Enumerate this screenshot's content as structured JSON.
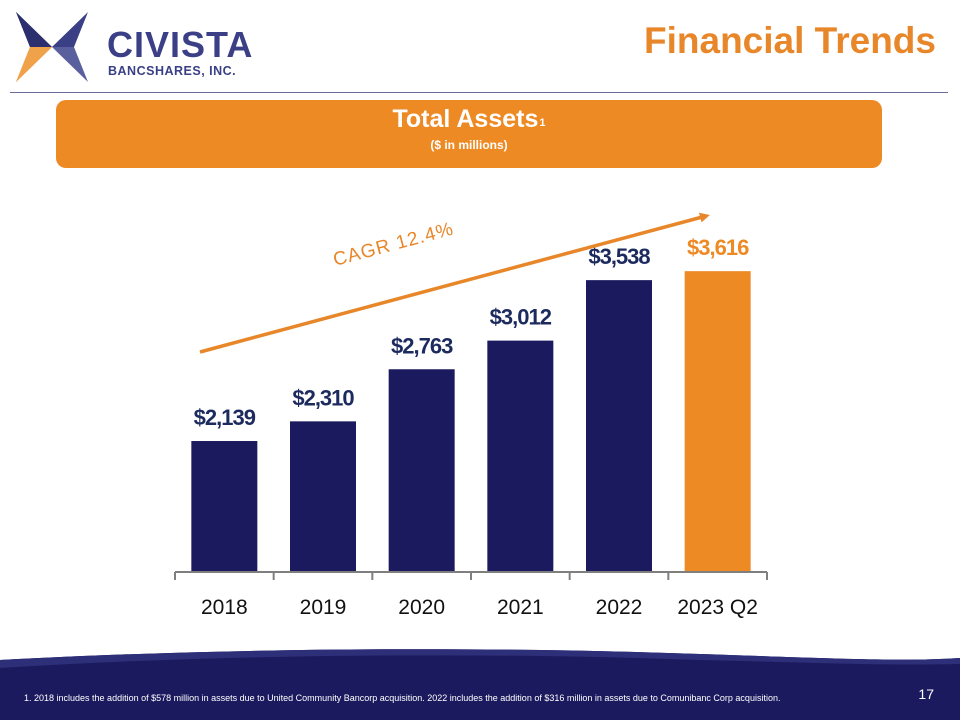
{
  "header": {
    "logo_name": "CIVISTA",
    "logo_subtitle": "BANCSHARES, INC.",
    "page_title": "Financial Trends"
  },
  "banner": {
    "title": "Total Assets",
    "superscript": "1",
    "subtitle": "($ in millions)"
  },
  "chart_data": {
    "type": "bar",
    "title": "Total Assets",
    "categories": [
      "2018",
      "2019",
      "2020",
      "2021",
      "2022",
      "2023 Q2"
    ],
    "values": [
      2139,
      2310,
      2763,
      3012,
      3538,
      3616
    ],
    "labels": [
      "$2,139",
      "$2,310",
      "$2,763",
      "$3,012",
      "$3,538",
      "$3,616"
    ],
    "colors": [
      "#1c1a5e",
      "#1c1a5e",
      "#1c1a5e",
      "#1c1a5e",
      "#1c1a5e",
      "#ee8a24"
    ],
    "label_colors": [
      "#1c2a5e",
      "#1c2a5e",
      "#1c2a5e",
      "#1c2a5e",
      "#1c2a5e",
      "#ee8a24"
    ],
    "annotation": "CAGR 12.4%",
    "ylim": [
      1000,
      3800
    ],
    "xlabel": "",
    "ylabel": ""
  },
  "footer": {
    "footnote": "1. 2018 includes the addition of $578 million in assets due to United Community Bancorp acquisition. 2022 includes the addition of $316 million in assets due to Comunibanc Corp acquisition.",
    "page_number": "17"
  },
  "colors": {
    "navy": "#1c1a5e",
    "orange": "#ee8a24",
    "brand": "#3a3f86"
  }
}
